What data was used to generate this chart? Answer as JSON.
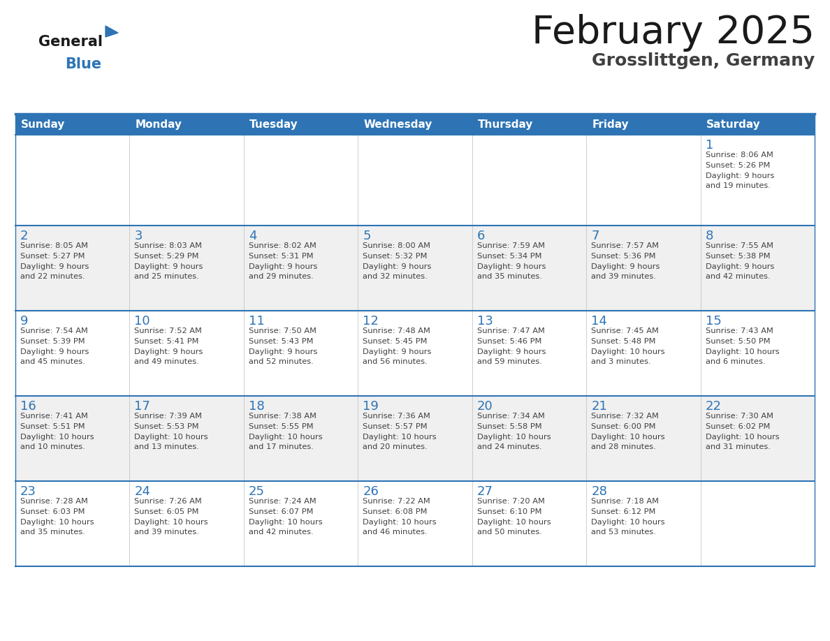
{
  "title": "February 2025",
  "subtitle": "Grosslittgen, Germany",
  "days_of_week": [
    "Sunday",
    "Monday",
    "Tuesday",
    "Wednesday",
    "Thursday",
    "Friday",
    "Saturday"
  ],
  "header_bg": "#2E74B5",
  "header_text": "#FFFFFF",
  "cell_bg_white": "#FFFFFF",
  "cell_bg_gray": "#F0F0F0",
  "grid_line_color": "#2E74B5",
  "day_number_color": "#2E74B5",
  "cell_text_color": "#404040",
  "title_color": "#1A1A1A",
  "subtitle_color": "#404040",
  "logo_general_color": "#1A1A1A",
  "logo_blue_color": "#2E74B5",
  "calendar_data": [
    [
      {
        "day": null,
        "info": null
      },
      {
        "day": null,
        "info": null
      },
      {
        "day": null,
        "info": null
      },
      {
        "day": null,
        "info": null
      },
      {
        "day": null,
        "info": null
      },
      {
        "day": null,
        "info": null
      },
      {
        "day": 1,
        "info": "Sunrise: 8:06 AM\nSunset: 5:26 PM\nDaylight: 9 hours\nand 19 minutes."
      }
    ],
    [
      {
        "day": 2,
        "info": "Sunrise: 8:05 AM\nSunset: 5:27 PM\nDaylight: 9 hours\nand 22 minutes."
      },
      {
        "day": 3,
        "info": "Sunrise: 8:03 AM\nSunset: 5:29 PM\nDaylight: 9 hours\nand 25 minutes."
      },
      {
        "day": 4,
        "info": "Sunrise: 8:02 AM\nSunset: 5:31 PM\nDaylight: 9 hours\nand 29 minutes."
      },
      {
        "day": 5,
        "info": "Sunrise: 8:00 AM\nSunset: 5:32 PM\nDaylight: 9 hours\nand 32 minutes."
      },
      {
        "day": 6,
        "info": "Sunrise: 7:59 AM\nSunset: 5:34 PM\nDaylight: 9 hours\nand 35 minutes."
      },
      {
        "day": 7,
        "info": "Sunrise: 7:57 AM\nSunset: 5:36 PM\nDaylight: 9 hours\nand 39 minutes."
      },
      {
        "day": 8,
        "info": "Sunrise: 7:55 AM\nSunset: 5:38 PM\nDaylight: 9 hours\nand 42 minutes."
      }
    ],
    [
      {
        "day": 9,
        "info": "Sunrise: 7:54 AM\nSunset: 5:39 PM\nDaylight: 9 hours\nand 45 minutes."
      },
      {
        "day": 10,
        "info": "Sunrise: 7:52 AM\nSunset: 5:41 PM\nDaylight: 9 hours\nand 49 minutes."
      },
      {
        "day": 11,
        "info": "Sunrise: 7:50 AM\nSunset: 5:43 PM\nDaylight: 9 hours\nand 52 minutes."
      },
      {
        "day": 12,
        "info": "Sunrise: 7:48 AM\nSunset: 5:45 PM\nDaylight: 9 hours\nand 56 minutes."
      },
      {
        "day": 13,
        "info": "Sunrise: 7:47 AM\nSunset: 5:46 PM\nDaylight: 9 hours\nand 59 minutes."
      },
      {
        "day": 14,
        "info": "Sunrise: 7:45 AM\nSunset: 5:48 PM\nDaylight: 10 hours\nand 3 minutes."
      },
      {
        "day": 15,
        "info": "Sunrise: 7:43 AM\nSunset: 5:50 PM\nDaylight: 10 hours\nand 6 minutes."
      }
    ],
    [
      {
        "day": 16,
        "info": "Sunrise: 7:41 AM\nSunset: 5:51 PM\nDaylight: 10 hours\nand 10 minutes."
      },
      {
        "day": 17,
        "info": "Sunrise: 7:39 AM\nSunset: 5:53 PM\nDaylight: 10 hours\nand 13 minutes."
      },
      {
        "day": 18,
        "info": "Sunrise: 7:38 AM\nSunset: 5:55 PM\nDaylight: 10 hours\nand 17 minutes."
      },
      {
        "day": 19,
        "info": "Sunrise: 7:36 AM\nSunset: 5:57 PM\nDaylight: 10 hours\nand 20 minutes."
      },
      {
        "day": 20,
        "info": "Sunrise: 7:34 AM\nSunset: 5:58 PM\nDaylight: 10 hours\nand 24 minutes."
      },
      {
        "day": 21,
        "info": "Sunrise: 7:32 AM\nSunset: 6:00 PM\nDaylight: 10 hours\nand 28 minutes."
      },
      {
        "day": 22,
        "info": "Sunrise: 7:30 AM\nSunset: 6:02 PM\nDaylight: 10 hours\nand 31 minutes."
      }
    ],
    [
      {
        "day": 23,
        "info": "Sunrise: 7:28 AM\nSunset: 6:03 PM\nDaylight: 10 hours\nand 35 minutes."
      },
      {
        "day": 24,
        "info": "Sunrise: 7:26 AM\nSunset: 6:05 PM\nDaylight: 10 hours\nand 39 minutes."
      },
      {
        "day": 25,
        "info": "Sunrise: 7:24 AM\nSunset: 6:07 PM\nDaylight: 10 hours\nand 42 minutes."
      },
      {
        "day": 26,
        "info": "Sunrise: 7:22 AM\nSunset: 6:08 PM\nDaylight: 10 hours\nand 46 minutes."
      },
      {
        "day": 27,
        "info": "Sunrise: 7:20 AM\nSunset: 6:10 PM\nDaylight: 10 hours\nand 50 minutes."
      },
      {
        "day": 28,
        "info": "Sunrise: 7:18 AM\nSunset: 6:12 PM\nDaylight: 10 hours\nand 53 minutes."
      },
      {
        "day": null,
        "info": null
      }
    ]
  ]
}
